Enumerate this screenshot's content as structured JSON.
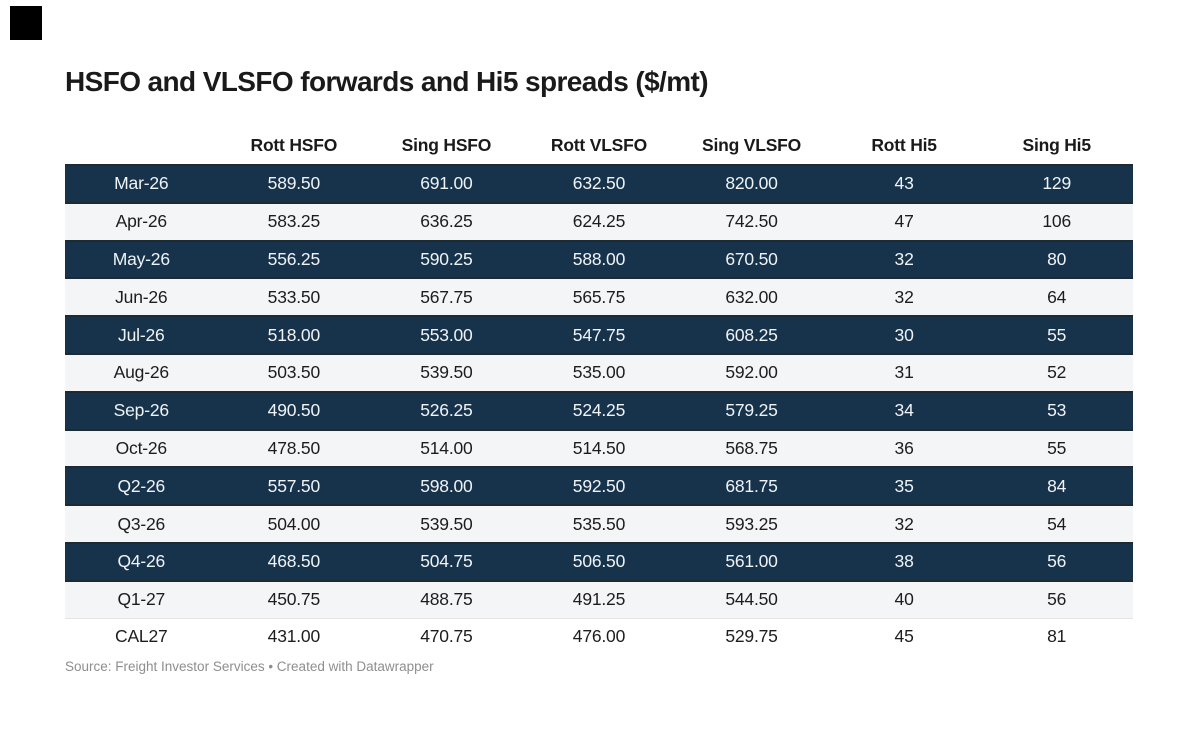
{
  "page": {
    "background": "#ffffff",
    "corner_square_color": "#000000"
  },
  "title": "HSFO and VLSFO forwards and Hi5 spreads ($/mt)",
  "table": {
    "columns": [
      "",
      "Rott HSFO",
      "Sing HSFO",
      "Rott VLSFO",
      "Sing VLSFO",
      "Rott Hi5",
      "Sing Hi5"
    ],
    "rows": [
      {
        "style": "dark",
        "cells": [
          "Mar-26",
          "589.50",
          "691.00",
          "632.50",
          "820.00",
          "43",
          "129"
        ]
      },
      {
        "style": "light",
        "cells": [
          "Apr-26",
          "583.25",
          "636.25",
          "624.25",
          "742.50",
          "47",
          "106"
        ]
      },
      {
        "style": "dark",
        "cells": [
          "May-26",
          "556.25",
          "590.25",
          "588.00",
          "670.50",
          "32",
          "80"
        ]
      },
      {
        "style": "light",
        "cells": [
          "Jun-26",
          "533.50",
          "567.75",
          "565.75",
          "632.00",
          "32",
          "64"
        ]
      },
      {
        "style": "dark",
        "cells": [
          "Jul-26",
          "518.00",
          "553.00",
          "547.75",
          "608.25",
          "30",
          "55"
        ]
      },
      {
        "style": "light",
        "cells": [
          "Aug-26",
          "503.50",
          "539.50",
          "535.00",
          "592.00",
          "31",
          "52"
        ]
      },
      {
        "style": "dark",
        "cells": [
          "Sep-26",
          "490.50",
          "526.25",
          "524.25",
          "579.25",
          "34",
          "53"
        ]
      },
      {
        "style": "light",
        "cells": [
          "Oct-26",
          "478.50",
          "514.00",
          "514.50",
          "568.75",
          "36",
          "55"
        ]
      },
      {
        "style": "dark",
        "cells": [
          "Q2-26",
          "557.50",
          "598.00",
          "592.50",
          "681.75",
          "35",
          "84"
        ]
      },
      {
        "style": "light",
        "cells": [
          "Q3-26",
          "504.00",
          "539.50",
          "535.50",
          "593.25",
          "32",
          "54"
        ]
      },
      {
        "style": "dark",
        "cells": [
          "Q4-26",
          "468.50",
          "504.75",
          "506.50",
          "561.00",
          "38",
          "56"
        ]
      },
      {
        "style": "light",
        "cells": [
          "Q1-27",
          "450.75",
          "488.75",
          "491.25",
          "544.50",
          "40",
          "56"
        ]
      },
      {
        "style": "plain",
        "cells": [
          "CAL27",
          "431.00",
          "470.75",
          "476.00",
          "529.75",
          "45",
          "81"
        ]
      }
    ],
    "colors": {
      "highlight_bg": "#17334c",
      "highlight_text": "#eff3f6",
      "row_bg": "#f4f5f6",
      "row_text": "#1d1d1d"
    }
  },
  "footer": {
    "source_text": "Source: Freight Investor Services • Created with Datawrapper"
  },
  "chart_data": {
    "type": "table",
    "title": "HSFO and VLSFO forwards and Hi5 spreads ($/mt)",
    "columns": [
      "",
      "Rott HSFO",
      "Sing HSFO",
      "Rott VLSFO",
      "Sing VLSFO",
      "Rott Hi5",
      "Sing Hi5"
    ],
    "rows": [
      [
        "Mar-26",
        589.5,
        691.0,
        632.5,
        820.0,
        43,
        129
      ],
      [
        "Apr-26",
        583.25,
        636.25,
        624.25,
        742.5,
        47,
        106
      ],
      [
        "May-26",
        556.25,
        590.25,
        588.0,
        670.5,
        32,
        80
      ],
      [
        "Jun-26",
        533.5,
        567.75,
        565.75,
        632.0,
        32,
        64
      ],
      [
        "Jul-26",
        518.0,
        553.0,
        547.75,
        608.25,
        30,
        55
      ],
      [
        "Aug-26",
        503.5,
        539.5,
        535.0,
        592.0,
        31,
        52
      ],
      [
        "Sep-26",
        490.5,
        526.25,
        524.25,
        579.25,
        34,
        53
      ],
      [
        "Oct-26",
        478.5,
        514.0,
        514.5,
        568.75,
        36,
        55
      ],
      [
        "Q2-26",
        557.5,
        598.0,
        592.5,
        681.75,
        35,
        84
      ],
      [
        "Q3-26",
        504.0,
        539.5,
        535.5,
        593.25,
        32,
        54
      ],
      [
        "Q4-26",
        468.5,
        504.75,
        506.5,
        561.0,
        38,
        56
      ],
      [
        "Q1-27",
        450.75,
        488.75,
        491.25,
        544.5,
        40,
        56
      ],
      [
        "CAL27",
        431.0,
        470.75,
        476.0,
        529.75,
        45,
        81
      ]
    ],
    "highlighted_rows": [
      "Mar-26",
      "May-26",
      "Jul-26",
      "Sep-26",
      "Q2-26",
      "Q4-26"
    ],
    "source": "Freight Investor Services"
  }
}
